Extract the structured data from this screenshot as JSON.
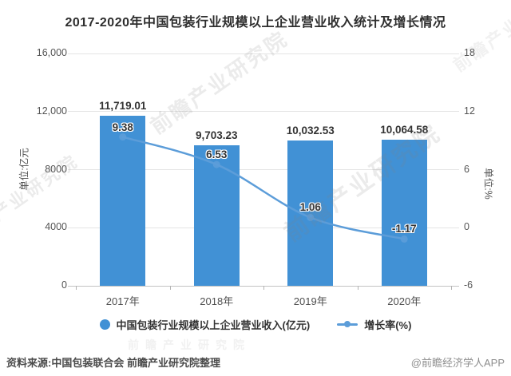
{
  "title": "2017-2020年中国包装行业规模以上企业营业收入统计及增长情况",
  "chart_data": {
    "type": "bar",
    "categories": [
      "2017年",
      "2018年",
      "2019年",
      "2020年"
    ],
    "series": [
      {
        "name": "中国包装行业规模以上企业营业收入(亿元)",
        "type": "bar",
        "axis": "left",
        "color": "#4191D5",
        "values": [
          11719.01,
          9703.23,
          10032.53,
          10064.58
        ],
        "labels": [
          "11,719.01",
          "9,703.23",
          "10,032.53",
          "10,064.58"
        ]
      },
      {
        "name": "增长率(%)",
        "type": "line",
        "axis": "right",
        "color": "#5C9DD9",
        "values": [
          9.38,
          6.53,
          1.06,
          -1.17
        ],
        "labels": [
          "9.38",
          "6.53",
          "1.06",
          "-1.17"
        ]
      }
    ],
    "left_axis": {
      "name": "单位:亿元",
      "min": 0,
      "max": 16000,
      "ticks": [
        {
          "label": "16,000",
          "value": 16000
        },
        {
          "label": "12,000",
          "value": 12000
        },
        {
          "label": "8000",
          "value": 8000
        },
        {
          "label": "4000",
          "value": 4000
        },
        {
          "label": "0",
          "value": 0
        }
      ]
    },
    "right_axis": {
      "name": "单位:%",
      "min": -6,
      "max": 18,
      "ticks": [
        {
          "label": "18",
          "value": 18
        },
        {
          "label": "12",
          "value": 12
        },
        {
          "label": "6",
          "value": 6
        },
        {
          "label": "0",
          "value": 0
        },
        {
          "label": "-6",
          "value": -6
        }
      ]
    },
    "grid": true,
    "legend_position": "bottom"
  },
  "legend": {
    "items": [
      {
        "label": "中国包装行业规模以上企业营业收入(亿元)",
        "marker": "circle",
        "color": "#4191D5"
      },
      {
        "label": "增长率(%)",
        "marker": "line-dot",
        "color": "#5C9DD9"
      }
    ]
  },
  "footer": {
    "source": "资料来源:中国包装联合会 前瞻产业研究院整理",
    "credit": "@前瞻经济学人APP"
  },
  "watermark": {
    "text": "前瞻产业研究院"
  }
}
